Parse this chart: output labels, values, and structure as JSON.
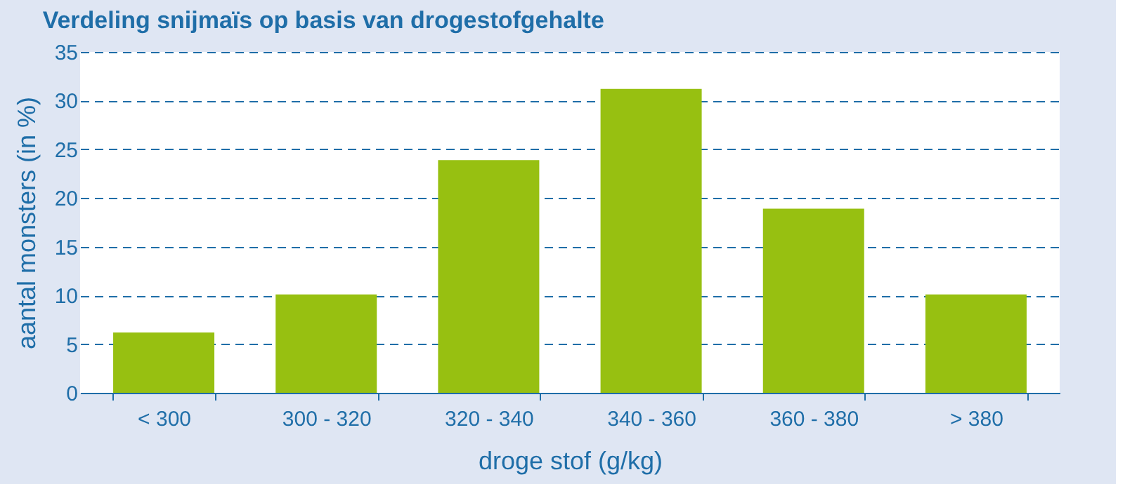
{
  "chart_data": {
    "type": "bar",
    "title": "Verdeling snijmaïs op basis van drogestofgehalte",
    "xlabel": "droge stof (g/kg)",
    "ylabel": "aantal monsters (in %)",
    "categories": [
      "< 300",
      "300 - 320",
      "320 - 340",
      "340 - 360",
      "360 - 380",
      "> 380"
    ],
    "values": [
      6.2,
      10.1,
      23.9,
      31.2,
      18.9,
      10.1
    ],
    "color": "#97c011",
    "ylim": [
      0,
      35
    ],
    "yticks": [
      0,
      5,
      10,
      15,
      20,
      25,
      30,
      35
    ],
    "grid": "y",
    "line_style": "dashed"
  }
}
